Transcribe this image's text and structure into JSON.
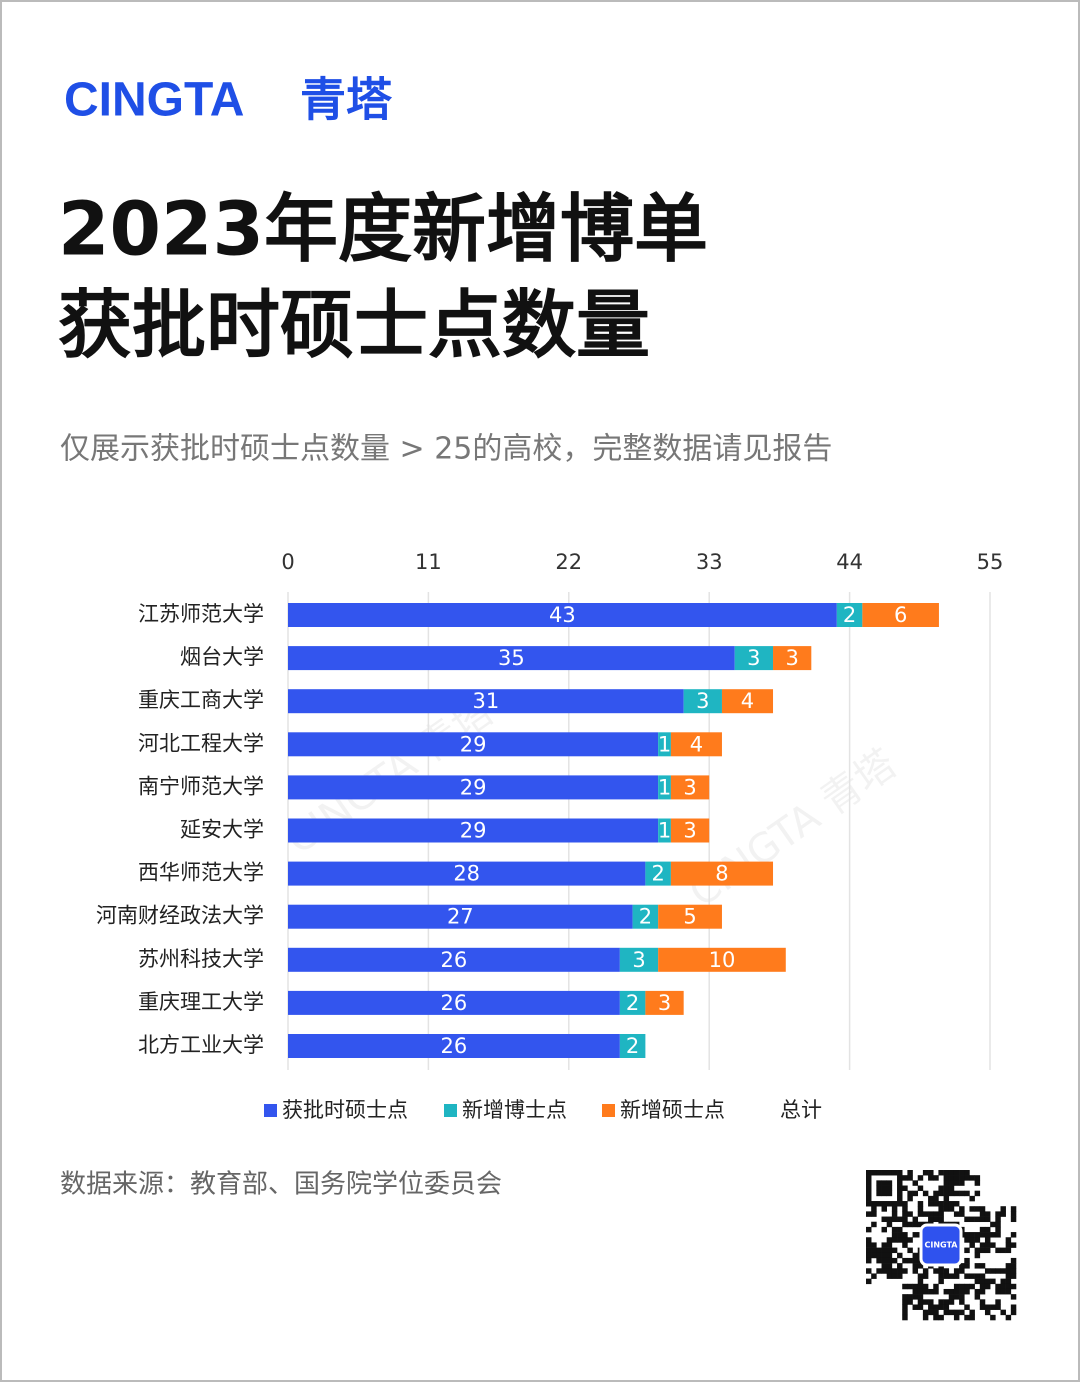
{
  "brand": {
    "name": "CINGTA",
    "name_cn": "青塔"
  },
  "title_lines": [
    "2023年度新增博单",
    "获批时硕士点数量"
  ],
  "subtitle": "仅展示获批时硕士点数量 > 25的高校，完整数据请见报告",
  "watermark": "CINGTA 青塔",
  "source": "数据来源：教育部、国务院学位委员会",
  "qr_label": "CINGTA",
  "chart_data": {
    "type": "stacked_bar_horizontal",
    "categories": [
      "江苏师范大学",
      "烟台大学",
      "重庆工商大学",
      "河北工程大学",
      "南宁师范大学",
      "延安大学",
      "西华师范大学",
      "河南财经政法大学",
      "苏州科技大学",
      "重庆理工大学",
      "北方工业大学"
    ],
    "series": [
      {
        "name": "获批时硕士点",
        "color": "#3355ee",
        "values": [
          43,
          35,
          31,
          29,
          29,
          29,
          28,
          27,
          26,
          26,
          26
        ]
      },
      {
        "name": "新增博士点",
        "color": "#1fb5c2",
        "values": [
          2,
          3,
          3,
          1,
          1,
          1,
          2,
          2,
          3,
          2,
          2
        ]
      },
      {
        "name": "新增硕士点",
        "color": "#ff7b1c",
        "values": [
          6,
          3,
          4,
          4,
          3,
          3,
          8,
          5,
          10,
          3,
          null
        ]
      },
      {
        "name": "总计",
        "color": null,
        "values": [
          null,
          null,
          null,
          null,
          null,
          null,
          null,
          null,
          null,
          null,
          null
        ]
      }
    ],
    "xlim": [
      0,
      55
    ],
    "xticks": [
      0,
      11,
      22,
      33,
      44,
      55
    ],
    "grid": true,
    "legend": "bottom"
  }
}
